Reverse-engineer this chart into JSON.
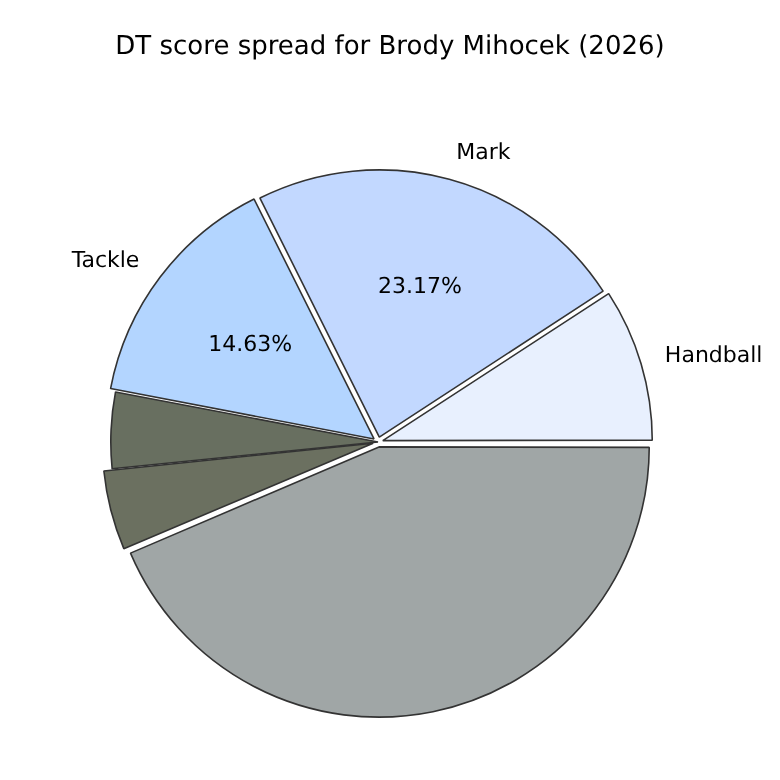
{
  "chart_data": {
    "type": "pie",
    "title": "DT score spread for Brody Mihocek (2026)",
    "categories": [
      "Handball",
      "Mark",
      "Tackle",
      null,
      null,
      null
    ],
    "values": [
      9.2,
      23.17,
      14.63,
      4.6,
      4.8,
      43.6
    ],
    "colors": [
      "#e8f0fe",
      "#c2d8ff",
      "#b3d5ff",
      "#686f60",
      "#6b7060",
      "#a0a6a6"
    ],
    "value_labels": [
      null,
      "23.17%",
      "14.63%",
      null,
      null,
      null
    ]
  }
}
